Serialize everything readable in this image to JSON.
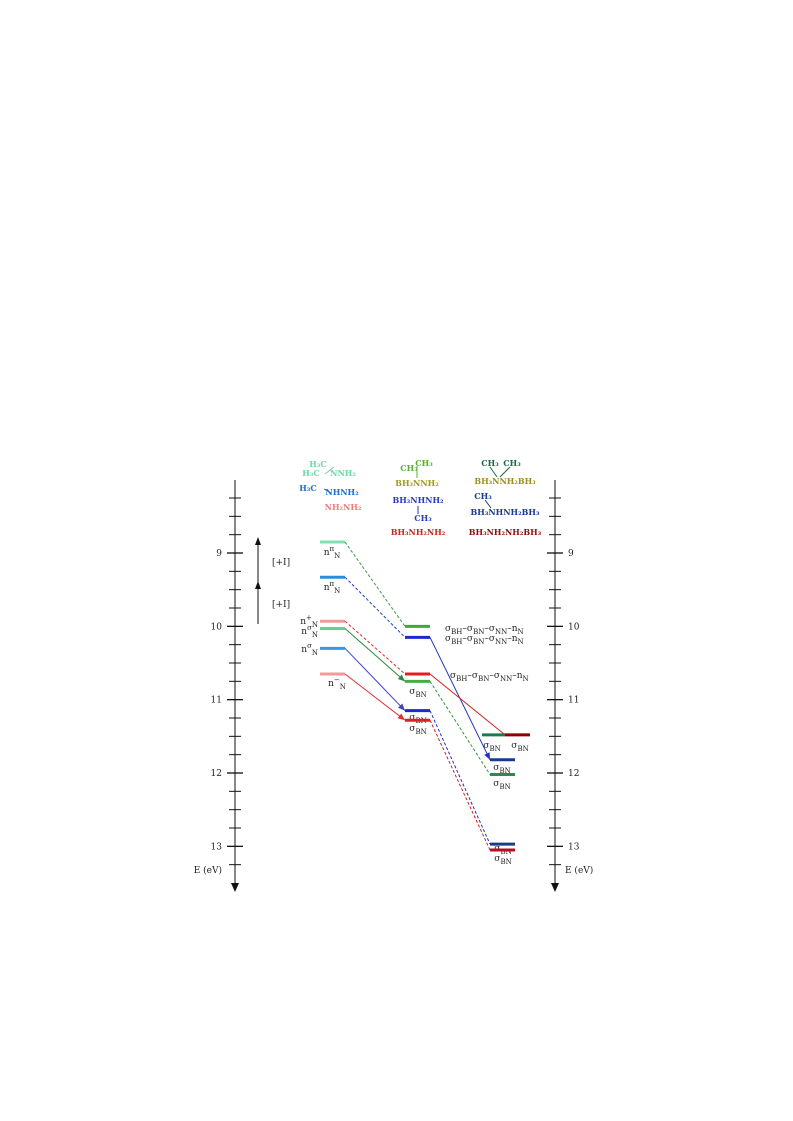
{
  "structures": [
    {
      "text": "H₃C",
      "color": "#6fd6a8"
    },
    {
      "text": "H₃C",
      "color": "#6fd6a8"
    },
    {
      "text": "NNH₂",
      "color": "#6fd6a8"
    },
    {
      "text": "H₃C",
      "color": "#1a6fd0"
    },
    {
      "text": "NHNH₂",
      "color": "#1a6fd0"
    },
    {
      "text": "NH₂NH₂",
      "color": "#f07b7b"
    },
    {
      "text": "CH₃",
      "color": "#58b030"
    },
    {
      "text": "CH₃",
      "color": "#58b030"
    },
    {
      "text": "BH₃NNH₂",
      "color": "#a09a20"
    },
    {
      "text": "BH₃NHNH₂",
      "color": "#2a3ac0"
    },
    {
      "text": "CH₃",
      "color": "#2a3ac0"
    },
    {
      "text": "BH₃NH₂NH₂",
      "color": "#c02a20"
    },
    {
      "text": "CH₃",
      "color": "#1a6a40"
    },
    {
      "text": "CH₃",
      "color": "#1a6a40"
    },
    {
      "text": "BH₃NNH₂BH₃",
      "color": "#9a9020"
    },
    {
      "text": "CH₃",
      "color": "#1a3a8a"
    },
    {
      "text": "BH₃NHNH₂BH₃",
      "color": "#1a3a8a"
    },
    {
      "text": "BH₃NH₂NH₂BH₃",
      "color": "#8b1010"
    }
  ],
  "axis": {
    "label": "E (eV)",
    "range": [
      8.1,
      13.35
    ],
    "ticks": [
      8.25,
      8.5,
      8.75,
      9,
      9.25,
      9.5,
      9.75,
      10,
      10.25,
      10.5,
      10.75,
      11,
      11.25,
      11.5,
      11.75,
      12,
      12.25,
      12.5,
      12.75,
      13,
      13.25
    ],
    "labeled_ticks": [
      9,
      10,
      11,
      12,
      13
    ]
  },
  "inductive_effects": [
    "[+I]",
    "[+I]"
  ],
  "columns": [
    {
      "levels": [
        {
          "energy": 8.85,
          "color": "#80e0b0",
          "label": [
            {
              "text": "n",
              "sup": "π",
              "sub": "N"
            }
          ]
        },
        {
          "energy": 9.33,
          "color": "#2a8fe0",
          "label": [
            {
              "text": "n",
              "sup": "π",
              "sub": "N"
            }
          ]
        },
        {
          "energy": 9.93,
          "color": "#f29a9a",
          "label": [
            {
              "text": "n",
              "sup": "+",
              "sub": "N"
            }
          ]
        },
        {
          "energy": 10.03,
          "color": "#66d090",
          "label": [
            {
              "text": "n",
              "sup": "σ",
              "sub": "N"
            }
          ]
        },
        {
          "energy": 10.3,
          "color": "#3399e6",
          "label": [
            {
              "text": "n",
              "sup": "σ",
              "sub": "N"
            }
          ]
        },
        {
          "energy": 10.65,
          "color": "#f29a9a",
          "label": [
            {
              "text": "n",
              "sup": "−",
              "sub": "N"
            }
          ]
        }
      ]
    },
    {
      "levels": [
        {
          "energy": 10.0,
          "color": "#3aaa3a",
          "label": [
            {
              "text": "σ",
              "sub": "BH"
            },
            {
              "text": "–σ",
              "sub": "BN"
            },
            {
              "text": "–σ",
              "sub": "NN"
            },
            {
              "text": "–n",
              "sub": "N"
            }
          ]
        },
        {
          "energy": 10.15,
          "color": "#1a2ad0",
          "label": [
            {
              "text": "σ",
              "sub": "BH"
            },
            {
              "text": "–σ",
              "sub": "BN"
            },
            {
              "text": "–σ",
              "sub": "NN"
            },
            {
              "text": "–n",
              "sub": "N"
            }
          ]
        },
        {
          "energy": 10.65,
          "color": "#e02020",
          "label": [
            {
              "text": "σ",
              "sub": "BH"
            },
            {
              "text": "–σ",
              "sub": "BN"
            },
            {
              "text": "–σ",
              "sub": "NN"
            },
            {
              "text": "–n",
              "sub": "N"
            }
          ]
        },
        {
          "energy": 10.75,
          "color": "#40b040",
          "label": [
            {
              "text": "σ",
              "sub": "BN"
            }
          ]
        },
        {
          "energy": 11.15,
          "color": "#1a2ad0",
          "label": [
            {
              "text": "σ",
              "sub": "BN"
            }
          ]
        },
        {
          "energy": 11.28,
          "color": "#e02020",
          "label": [
            {
              "text": "σ",
              "sub": "BN"
            }
          ]
        }
      ]
    },
    {
      "levels": [
        {
          "energy": 11.48,
          "color": "#1a7a50",
          "label": [
            {
              "text": "σ",
              "sub": "BN"
            }
          ]
        },
        {
          "energy": 11.48,
          "color": "#8b0000",
          "label": [
            {
              "text": "σ",
              "sub": "BN"
            }
          ]
        },
        {
          "energy": 11.82,
          "color": "#1a3a8a",
          "label": [
            {
              "text": "σ",
              "sub": "BN"
            }
          ]
        },
        {
          "energy": 12.02,
          "color": "#2a8a50",
          "label": [
            {
              "text": "σ",
              "sub": "BN"
            }
          ]
        },
        {
          "energy": 12.97,
          "color": "#1a3a8a",
          "label": [
            {
              "text": "σ",
              "sub": "BN"
            }
          ]
        },
        {
          "energy": 13.05,
          "color": "#b01020",
          "label": [
            {
              "text": "σ",
              "sub": "BN"
            }
          ]
        }
      ]
    }
  ],
  "connections": [
    {
      "from": [
        0,
        0
      ],
      "to": [
        1,
        0
      ],
      "style": "dashed",
      "color": "#3a9a40"
    },
    {
      "from": [
        0,
        1
      ],
      "to": [
        1,
        1
      ],
      "style": "dashed",
      "color": "#2040c0"
    },
    {
      "from": [
        0,
        2
      ],
      "to": [
        1,
        2
      ],
      "style": "dashed",
      "color": "#d03030"
    },
    {
      "from": [
        0,
        3
      ],
      "to": [
        1,
        3
      ],
      "style": "arrow",
      "color": "#2a8a40"
    },
    {
      "from": [
        0,
        4
      ],
      "to": [
        1,
        4
      ],
      "style": "arrow",
      "color": "#4040d0"
    },
    {
      "from": [
        0,
        5
      ],
      "to": [
        1,
        5
      ],
      "style": "arrow",
      "color": "#e03030"
    },
    {
      "from": [
        1,
        1
      ],
      "to": [
        2,
        2
      ],
      "style": "arrow",
      "color": "#2030c0"
    },
    {
      "from": [
        1,
        2
      ],
      "to": [
        2,
        1
      ],
      "style": "solid",
      "color": "#d02020"
    },
    {
      "from": [
        1,
        3
      ],
      "to": [
        2,
        3
      ],
      "style": "dashed",
      "color": "#2a9a40"
    },
    {
      "from": [
        1,
        4
      ],
      "to": [
        2,
        4
      ],
      "style": "dashed",
      "color": "#2030c0"
    },
    {
      "from": [
        1,
        5
      ],
      "to": [
        2,
        5
      ],
      "style": "dashed",
      "color": "#d02020"
    }
  ]
}
